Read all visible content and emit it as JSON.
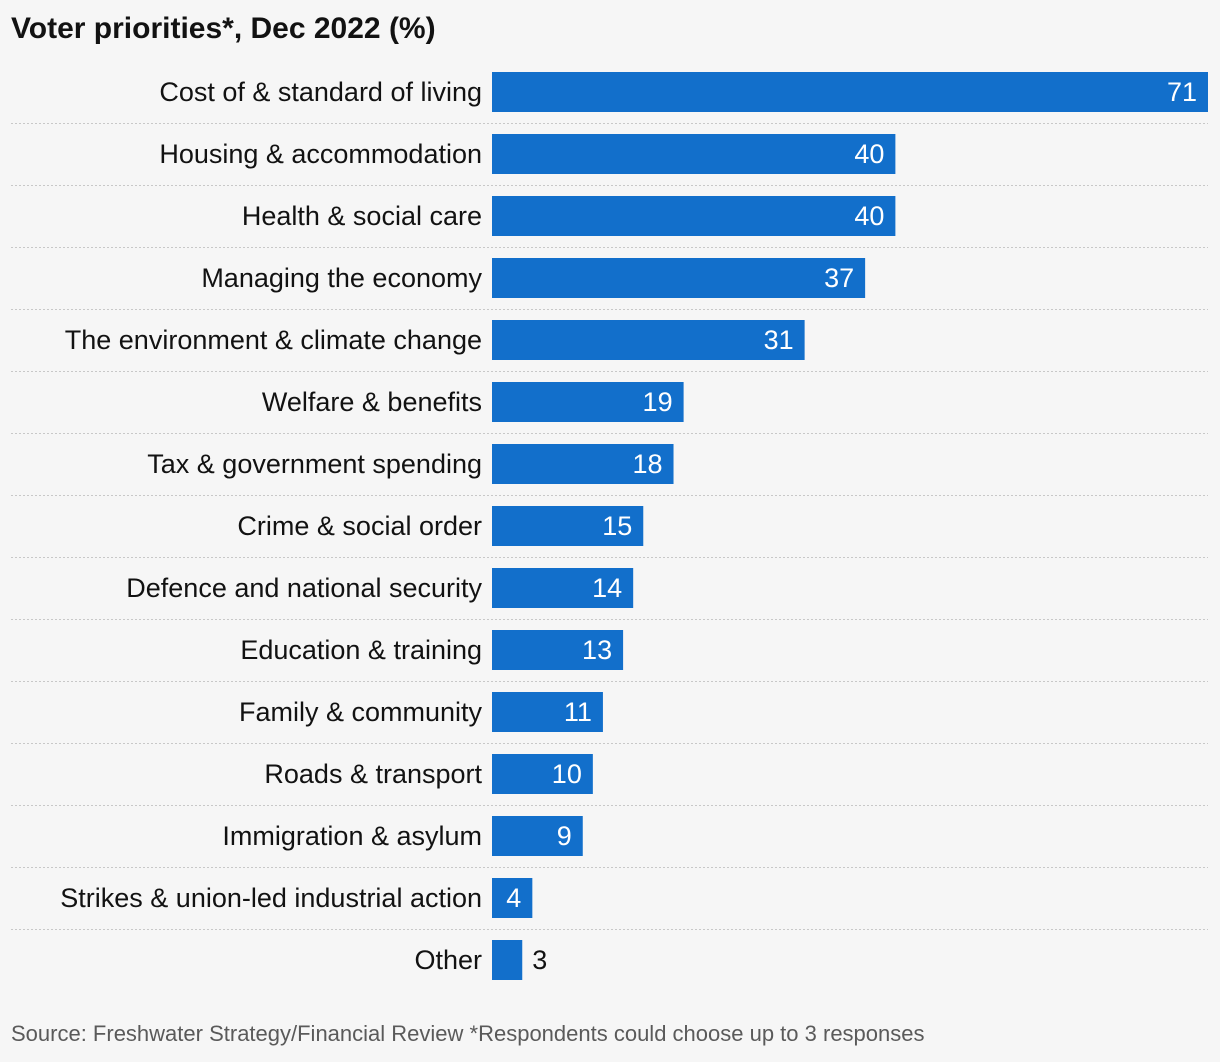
{
  "title": "Voter priorities*, Dec 2022 (%)",
  "source": "Source: Freshwater Strategy/Financial Review *Respondents could choose up to 3 responses",
  "colors": {
    "bar": "#126fcb",
    "value_inside": "#ffffff",
    "value_outside": "#121212",
    "gridline": "#c8c8c8"
  },
  "chart_data": {
    "type": "bar",
    "orientation": "horizontal",
    "title": "Voter priorities*, Dec 2022 (%)",
    "categories": [
      "Cost of & standard of living",
      "Housing & accommodation",
      "Health & social care",
      "Managing the economy",
      "The environment & climate change",
      "Welfare & benefits",
      "Tax & government spending",
      "Crime & social order",
      "Defence and national security",
      "Education & training",
      "Family & community",
      "Roads & transport",
      "Immigration & asylum",
      "Strikes & union-led industrial action",
      "Other"
    ],
    "values": [
      71,
      40,
      40,
      37,
      31,
      19,
      18,
      15,
      14,
      13,
      11,
      10,
      9,
      4,
      3
    ],
    "xlim": [
      0,
      71
    ],
    "grid": false,
    "legend": "none"
  }
}
